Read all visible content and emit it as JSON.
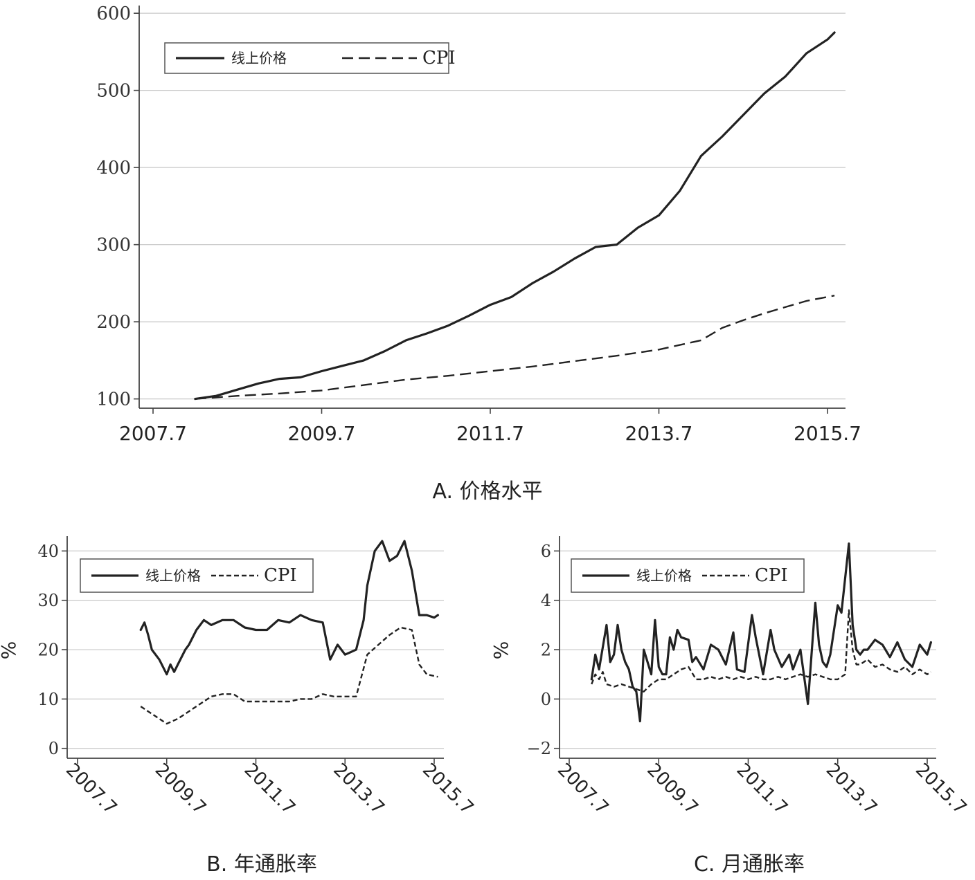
{
  "legend": {
    "online_label": "线上价格",
    "cpi_label": "CPI"
  },
  "panels": [
    {
      "id": "A",
      "caption": "A. 价格水平"
    },
    {
      "id": "B",
      "caption": "B. 年通胀率",
      "ylabel": "%"
    },
    {
      "id": "C",
      "caption": "C. 月通胀率",
      "ylabel": "%"
    }
  ],
  "chart_data": [
    {
      "type": "line",
      "panel": "A",
      "title": "A. 价格水平",
      "xlabel": "",
      "ylabel": "",
      "x_ticks": [
        "2007.7",
        "2009.7",
        "2011.7",
        "2013.7",
        "2015.7"
      ],
      "y_ticks": [
        100,
        200,
        300,
        400,
        500,
        600
      ],
      "ylim": [
        88,
        610
      ],
      "xlim": [
        "2007-06",
        "2015-08"
      ],
      "grid": "horizontal",
      "legend_position": "top-left",
      "series": [
        {
          "name": "线上价格",
          "style": "solid",
          "x": [
            "2008-01",
            "2008-04",
            "2008-07",
            "2008-10",
            "2009-01",
            "2009-04",
            "2009-07",
            "2009-10",
            "2010-01",
            "2010-04",
            "2010-07",
            "2010-10",
            "2011-01",
            "2011-04",
            "2011-07",
            "2011-10",
            "2012-01",
            "2012-04",
            "2012-07",
            "2012-10",
            "2013-01",
            "2013-04",
            "2013-07",
            "2013-10",
            "2014-01",
            "2014-04",
            "2014-07",
            "2014-10",
            "2015-01",
            "2015-04",
            "2015-07",
            "2015-08"
          ],
          "values": [
            100,
            104,
            112,
            120,
            126,
            128,
            136,
            143,
            150,
            162,
            176,
            185,
            195,
            208,
            222,
            232,
            250,
            265,
            282,
            297,
            300,
            322,
            338,
            370,
            415,
            440,
            468,
            496,
            518,
            548,
            566,
            575
          ]
        },
        {
          "name": "CPI",
          "style": "dashed",
          "x": [
            "2008-01",
            "2008-07",
            "2009-01",
            "2009-07",
            "2010-01",
            "2010-07",
            "2011-01",
            "2011-07",
            "2012-01",
            "2012-07",
            "2013-01",
            "2013-07",
            "2013-10",
            "2014-01",
            "2014-04",
            "2014-07",
            "2014-10",
            "2015-01",
            "2015-04",
            "2015-08"
          ],
          "values": [
            100,
            104,
            107,
            111,
            118,
            125,
            130,
            136,
            142,
            149,
            156,
            164,
            170,
            176,
            192,
            202,
            211,
            219,
            227,
            234
          ]
        }
      ]
    },
    {
      "type": "line",
      "panel": "B",
      "title": "B. 年通胀率",
      "xlabel": "",
      "ylabel": "%",
      "x_ticks": [
        "2007.7",
        "2009.7",
        "2011.7",
        "2013.7",
        "2015.7"
      ],
      "y_ticks": [
        0,
        10,
        20,
        30,
        40
      ],
      "ylim": [
        -2,
        43
      ],
      "xlim": [
        "2007-06",
        "2015-08"
      ],
      "grid": "horizontal",
      "legend_position": "top",
      "series": [
        {
          "name": "线上价格",
          "style": "solid",
          "x": [
            "2008-12",
            "2009-01",
            "2009-02",
            "2009-03",
            "2009-05",
            "2009-07",
            "2009-08",
            "2009-09",
            "2009-10",
            "2009-12",
            "2010-01",
            "2010-03",
            "2010-05",
            "2010-07",
            "2010-10",
            "2011-01",
            "2011-04",
            "2011-07",
            "2011-10",
            "2012-01",
            "2012-04",
            "2012-07",
            "2012-10",
            "2013-01",
            "2013-03",
            "2013-05",
            "2013-07",
            "2013-10",
            "2013-12",
            "2014-01",
            "2014-03",
            "2014-05",
            "2014-07",
            "2014-09",
            "2014-11",
            "2015-01",
            "2015-03",
            "2015-05",
            "2015-07",
            "2015-08"
          ],
          "values": [
            24,
            25.5,
            23,
            20,
            18,
            15,
            17,
            15.5,
            17,
            20,
            21,
            24,
            26,
            25,
            26,
            26,
            24.5,
            24,
            24,
            26,
            25.5,
            27,
            26,
            25.5,
            18,
            21,
            19,
            20,
            26,
            33,
            40,
            42,
            38,
            39,
            42,
            36,
            27,
            27,
            26.5,
            27
          ]
        },
        {
          "name": "CPI",
          "style": "dashed",
          "x": [
            "2008-12",
            "2009-03",
            "2009-06",
            "2009-07",
            "2009-10",
            "2010-01",
            "2010-04",
            "2010-07",
            "2010-10",
            "2011-01",
            "2011-04",
            "2011-07",
            "2011-10",
            "2012-01",
            "2012-04",
            "2012-07",
            "2012-10",
            "2013-01",
            "2013-04",
            "2013-07",
            "2013-10",
            "2014-01",
            "2014-04",
            "2014-07",
            "2014-10",
            "2015-01",
            "2015-03",
            "2015-05",
            "2015-08"
          ],
          "values": [
            8.5,
            7,
            5.5,
            5,
            6,
            7.5,
            9,
            10.5,
            11,
            11,
            9.5,
            9.5,
            9.5,
            9.5,
            9.5,
            10,
            10,
            11,
            10.5,
            10.5,
            10.5,
            19,
            21,
            23,
            24.5,
            24,
            17,
            15,
            14.5
          ]
        }
      ]
    },
    {
      "type": "line",
      "panel": "C",
      "title": "C. 月通胀率",
      "xlabel": "",
      "ylabel": "%",
      "x_ticks": [
        "2007.7",
        "2009.7",
        "2011.7",
        "2013.7",
        "2015.7"
      ],
      "y_ticks": [
        -2,
        0,
        2,
        4,
        6
      ],
      "ylim": [
        -2.4,
        6.6
      ],
      "xlim": [
        "2007-06",
        "2015-08"
      ],
      "grid": "horizontal",
      "legend_position": "top",
      "series": [
        {
          "name": "线上价格",
          "style": "solid",
          "x": [
            "2008-01",
            "2008-02",
            "2008-03",
            "2008-05",
            "2008-06",
            "2008-07",
            "2008-08",
            "2008-09",
            "2008-10",
            "2008-11",
            "2008-12",
            "2009-01",
            "2009-02",
            "2009-03",
            "2009-04",
            "2009-05",
            "2009-06",
            "2009-07",
            "2009-08",
            "2009-09",
            "2009-10",
            "2009-11",
            "2009-12",
            "2010-01",
            "2010-03",
            "2010-04",
            "2010-05",
            "2010-07",
            "2010-09",
            "2010-11",
            "2011-01",
            "2011-03",
            "2011-04",
            "2011-06",
            "2011-08",
            "2011-09",
            "2011-11",
            "2012-01",
            "2012-02",
            "2012-04",
            "2012-06",
            "2012-07",
            "2012-09",
            "2012-11",
            "2013-01",
            "2013-02",
            "2013-03",
            "2013-04",
            "2013-05",
            "2013-07",
            "2013-08",
            "2013-10",
            "2013-11",
            "2013-12",
            "2014-01",
            "2014-02",
            "2014-03",
            "2014-05",
            "2014-07",
            "2014-09",
            "2014-11",
            "2015-01",
            "2015-03",
            "2015-05",
            "2015-07",
            "2015-08"
          ],
          "values": [
            0.8,
            1.8,
            1.2,
            3,
            1.5,
            1.8,
            3,
            2,
            1.5,
            1.2,
            0.5,
            0.3,
            -0.9,
            2,
            1.5,
            1,
            3.2,
            1.3,
            1,
            1,
            2.5,
            2,
            2.8,
            2.5,
            2.4,
            1.5,
            1.7,
            1.2,
            2.2,
            2,
            1.4,
            2.7,
            1.2,
            1.1,
            3.4,
            2.5,
            1,
            2.8,
            2,
            1.3,
            1.8,
            1.2,
            2,
            -0.2,
            3.9,
            2.2,
            1.5,
            1.3,
            1.8,
            3.8,
            3.5,
            6.3,
            3,
            2,
            1.8,
            2,
            2,
            2.4,
            2.2,
            1.7,
            2.3,
            1.6,
            1.3,
            2.2,
            1.8,
            2.3
          ]
        },
        {
          "name": "CPI",
          "style": "dashed",
          "x": [
            "2008-01",
            "2008-02",
            "2008-03",
            "2008-04",
            "2008-05",
            "2008-07",
            "2008-09",
            "2008-11",
            "2009-01",
            "2009-03",
            "2009-05",
            "2009-07",
            "2009-09",
            "2009-11",
            "2010-01",
            "2010-03",
            "2010-05",
            "2010-07",
            "2010-09",
            "2010-11",
            "2011-01",
            "2011-03",
            "2011-05",
            "2011-07",
            "2011-09",
            "2011-11",
            "2012-01",
            "2012-03",
            "2012-05",
            "2012-07",
            "2012-09",
            "2012-11",
            "2013-01",
            "2013-03",
            "2013-05",
            "2013-07",
            "2013-09",
            "2013-10",
            "2013-11",
            "2013-12",
            "2014-01",
            "2014-03",
            "2014-05",
            "2014-07",
            "2014-09",
            "2014-11",
            "2015-01",
            "2015-03",
            "2015-05",
            "2015-07",
            "2015-08"
          ],
          "values": [
            0.6,
            1,
            0.8,
            1.1,
            0.6,
            0.5,
            0.6,
            0.5,
            0.4,
            0.3,
            0.6,
            0.8,
            0.8,
            1,
            1.2,
            1.3,
            0.8,
            0.8,
            0.9,
            0.8,
            0.9,
            0.8,
            0.9,
            0.8,
            0.9,
            0.8,
            0.8,
            0.9,
            0.8,
            0.9,
            1,
            0.9,
            1,
            0.9,
            0.8,
            0.8,
            1,
            3.6,
            2,
            1.4,
            1.4,
            1.6,
            1.3,
            1.4,
            1.2,
            1.1,
            1.3,
            1,
            1.2,
            1,
            1.1
          ]
        }
      ]
    }
  ]
}
